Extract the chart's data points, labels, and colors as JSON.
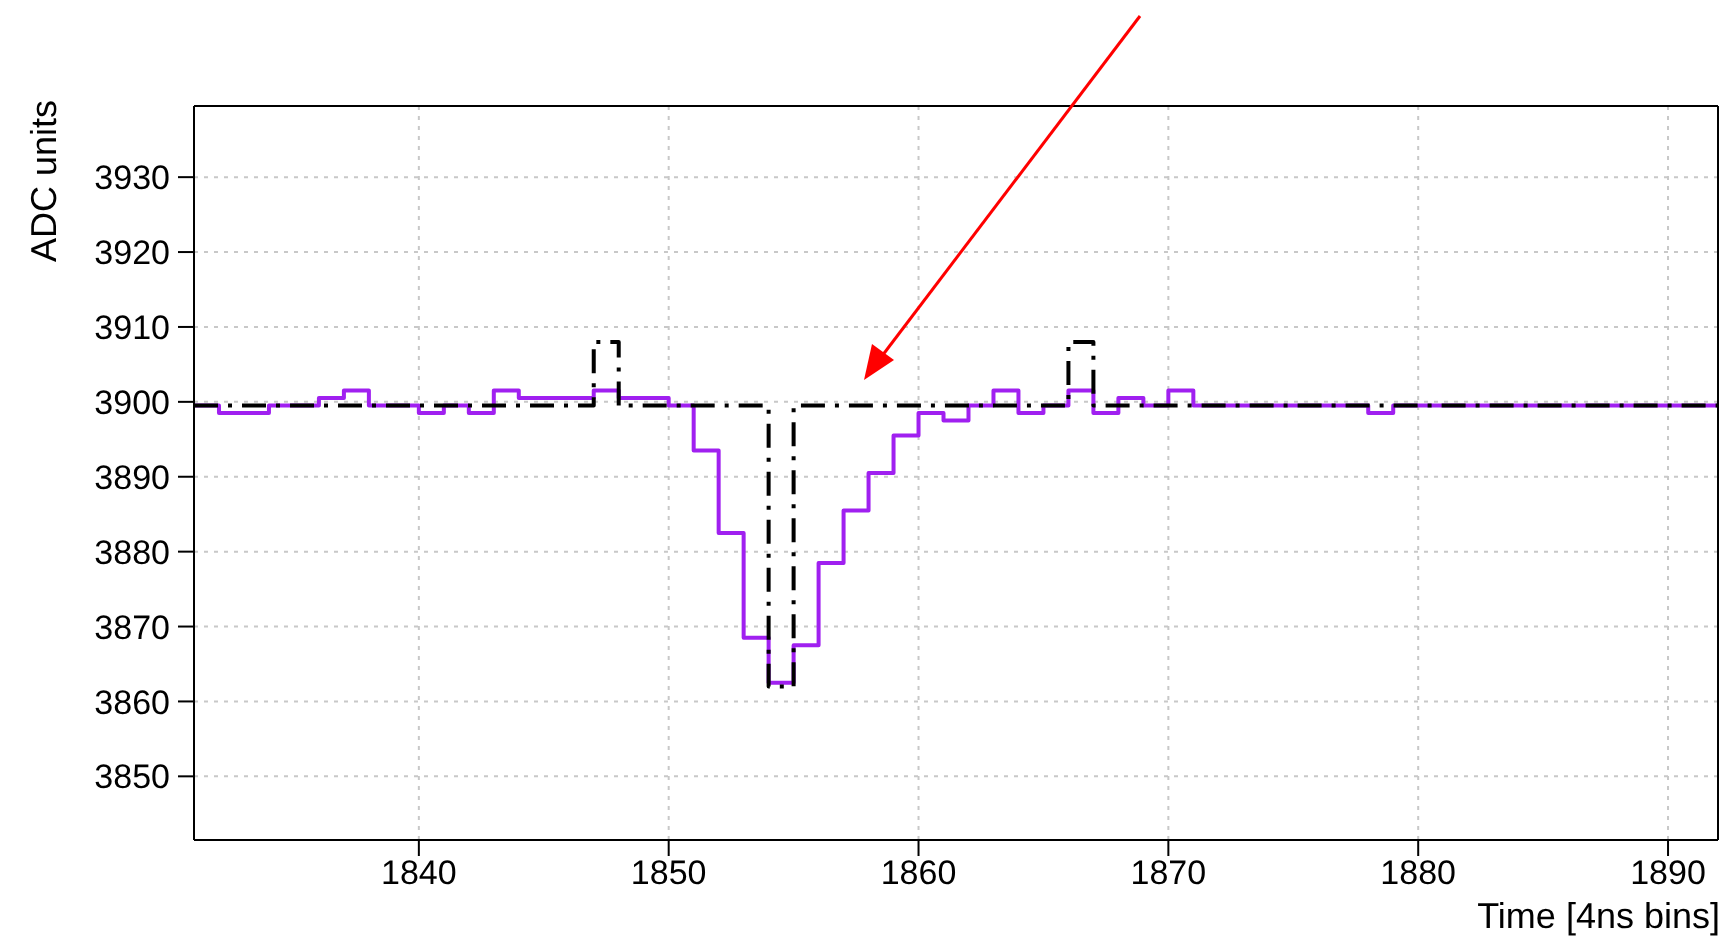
{
  "chart_data": {
    "type": "histogram",
    "xlabel": "Time [4ns bins]",
    "ylabel": "ADC units",
    "bins": [
      1831,
      1832,
      1833,
      1834,
      1835,
      1836,
      1837,
      1838,
      1839,
      1840,
      1841,
      1842,
      1843,
      1844,
      1845,
      1846,
      1847,
      1848,
      1849,
      1850,
      1851,
      1852,
      1853,
      1854,
      1855,
      1856,
      1857,
      1858,
      1859,
      1860,
      1861,
      1862,
      1863,
      1864,
      1865,
      1866,
      1867,
      1868,
      1869,
      1870,
      1871,
      1872,
      1873,
      1874,
      1875,
      1876,
      1877,
      1878,
      1879,
      1880,
      1881,
      1882,
      1883,
      1884,
      1885,
      1886,
      1887,
      1888,
      1889,
      1890,
      1891,
      1892
    ],
    "series": [
      {
        "color": "#a020f0",
        "line_style": "solid",
        "values": [
          3899.5,
          3898.5,
          3898.5,
          3899.5,
          3899.5,
          3900.5,
          3901.5,
          3899.5,
          3899.5,
          3898.5,
          3899.5,
          3898.5,
          3901.5,
          3900.5,
          3900.5,
          3900.5,
          3901.5,
          3900.5,
          3900.5,
          3899.5,
          3893.5,
          3882.5,
          3868.5,
          3862.5,
          3867.5,
          3878.5,
          3885.5,
          3890.5,
          3895.5,
          3898.5,
          3897.5,
          3899.5,
          3901.5,
          3898.5,
          3899.5,
          3901.5,
          3898.5,
          3900.5,
          3899.5,
          3901.5,
          3899.5,
          3899.5,
          3899.5,
          3899.5,
          3899.5,
          3899.5,
          3899.5,
          3898.5,
          3899.5,
          3899.5,
          3899.5,
          3899.5,
          3899.5,
          3899.5,
          3899.5,
          3899.5,
          3899.5,
          3899.5,
          3899.5,
          3899.5,
          3899.5
        ]
      },
      {
        "color": "#000000",
        "line_style": "dashed",
        "values": [
          3899.5,
          3899.5,
          3899.5,
          3899.5,
          3899.5,
          3899.5,
          3899.5,
          3899.5,
          3899.5,
          3899.5,
          3899.5,
          3899.5,
          3899.5,
          3899.5,
          3899.5,
          3899.5,
          3908,
          3899.5,
          3899.5,
          3899.5,
          3899.5,
          3899.5,
          3899.5,
          3862,
          3899.5,
          3899.5,
          3899.5,
          3899.5,
          3899.5,
          3899.5,
          3899.5,
          3899.5,
          3899.5,
          3899.5,
          3899.5,
          3908,
          3899.5,
          3899.5,
          3899.5,
          3899.5,
          3899.5,
          3899.5,
          3899.5,
          3899.5,
          3899.5,
          3899.5,
          3899.5,
          3899.5,
          3899.5,
          3899.5,
          3899.5,
          3899.5,
          3899.5,
          3899.5,
          3899.5,
          3899.5,
          3899.5,
          3899.5,
          3899.5,
          3899.5,
          3899.5
        ]
      }
    ],
    "xlim": [
      1831,
      1892
    ],
    "xticks": [
      1840,
      1850,
      1860,
      1870,
      1880,
      1890
    ],
    "ylim": [
      3841.5,
      3939.5
    ],
    "yticks": [
      3850,
      3860,
      3870,
      3880,
      3890,
      3900,
      3910,
      3920,
      3930
    ],
    "grid": true
  }
}
